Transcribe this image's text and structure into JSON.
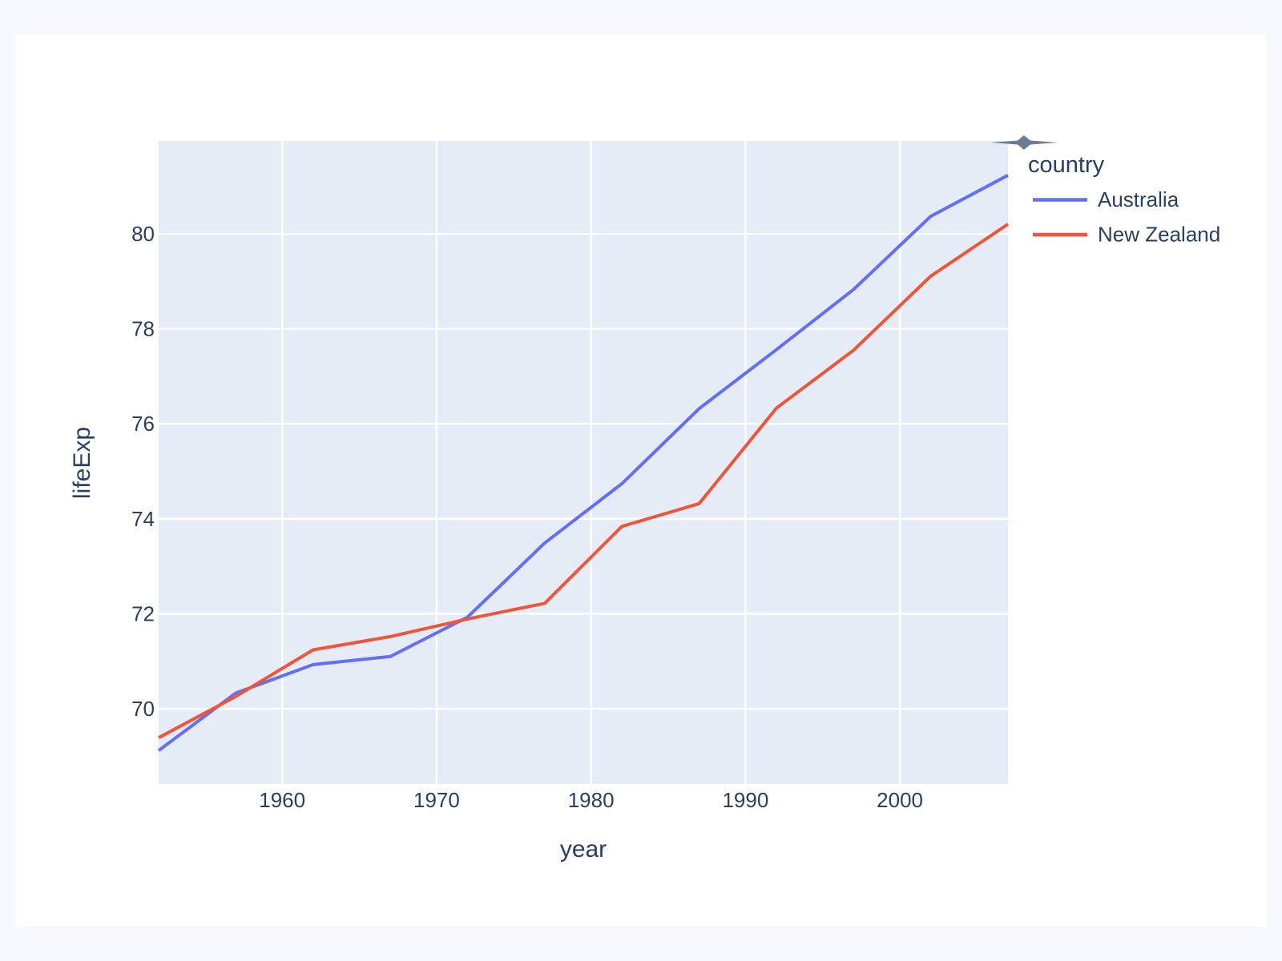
{
  "chart_data": {
    "type": "line",
    "title": "",
    "xlabel": "year",
    "ylabel": "lifeExp",
    "legend_title": "country",
    "legend_position": "top-right-outside",
    "grid": true,
    "x": [
      1952,
      1957,
      1962,
      1967,
      1972,
      1977,
      1982,
      1987,
      1992,
      1997,
      2002,
      2007
    ],
    "series": [
      {
        "name": "Australia",
        "color": "#636efa",
        "values": [
          69.12,
          70.33,
          70.93,
          71.1,
          71.93,
          73.49,
          74.74,
          76.32,
          77.56,
          78.83,
          80.37,
          81.235
        ]
      },
      {
        "name": "New Zealand",
        "color": "#ef553b",
        "values": [
          69.39,
          70.26,
          71.24,
          71.52,
          71.89,
          72.22,
          73.84,
          74.32,
          76.33,
          77.55,
          79.11,
          80.204
        ]
      }
    ],
    "x_ticks": [
      1960,
      1970,
      1980,
      1990,
      2000
    ],
    "y_ticks": [
      70,
      72,
      74,
      76,
      78,
      80
    ],
    "x_range": [
      1952,
      2007
    ],
    "y_range": [
      68.415,
      81.957
    ]
  },
  "icons": {
    "modebar_arrow": "collapsed-modebar-arrow"
  },
  "colors": {
    "page_bg": "#f7f8fd",
    "card_bg": "#ffffff",
    "plot_bg": "#e5ecf6",
    "grid": "#ffffff",
    "font": "#2a3f5f",
    "arrow": "#6b7c93",
    "australia": "#636efa",
    "new_zealand": "#ef553b"
  }
}
